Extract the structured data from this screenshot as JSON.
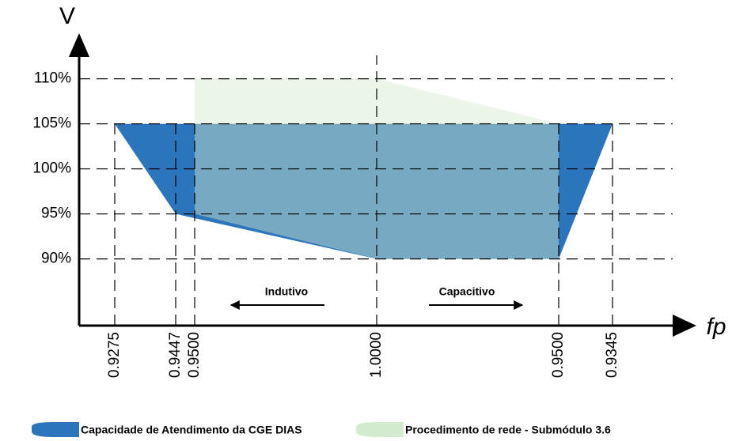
{
  "chart_data": {
    "type": "band",
    "y_axis_label": "V",
    "x_axis_label": "fp",
    "categories": [
      "0.9275",
      "0.9447",
      "0.9500",
      "1.0000",
      "0.9500",
      "0.9345"
    ],
    "ylim": [
      82.6,
      114.8
    ],
    "yticks": [
      {
        "value": 90,
        "label": "90%"
      },
      {
        "value": 95,
        "label": "95%"
      },
      {
        "value": 100,
        "label": "100%"
      },
      {
        "value": 105,
        "label": "105%"
      },
      {
        "value": 110,
        "label": "110%"
      }
    ],
    "grid": true,
    "series": [
      {
        "name": "Capacidade de Atendimento da CGE DIAS",
        "color": "#2c74bb",
        "upper": [
          105,
          105,
          105,
          105,
          105,
          105
        ],
        "lower": [
          105,
          95,
          null,
          90,
          90,
          105
        ]
      },
      {
        "name": "Procedimento de rede - Submódulo 3.6",
        "color": "#d3ebce",
        "upper": [
          null,
          null,
          110,
          110,
          105,
          null
        ],
        "lower": [
          null,
          null,
          95,
          90,
          90,
          null
        ]
      }
    ],
    "annotations": [
      "Indutivo",
      "Capacitivo"
    ]
  }
}
